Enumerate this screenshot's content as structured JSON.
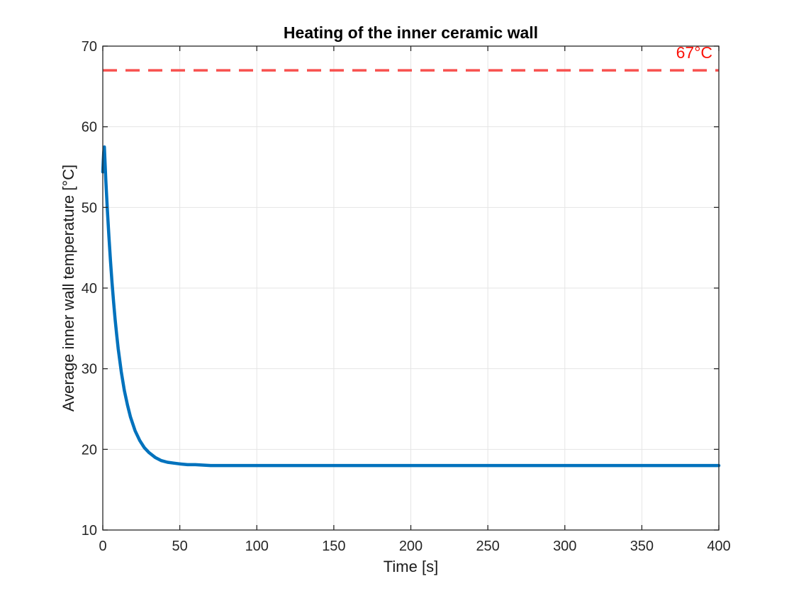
{
  "colors": {
    "background": "#ffffff",
    "axis": "#262626",
    "tick_text": "#262626",
    "grid": "#e5e5e5",
    "title_text": "#000000",
    "series_blue": "#0072BD",
    "series_red_dash": "#f8504f",
    "annotation_red": "#fb1209"
  },
  "chart_data": {
    "type": "line",
    "title": "Heating of the inner ceramic wall",
    "xlabel": "Time [s]",
    "ylabel": "Average inner wall temperature [°C]",
    "xlim": [
      0,
      400
    ],
    "ylim": [
      10,
      70
    ],
    "xticks": [
      0,
      50,
      100,
      150,
      200,
      250,
      300,
      350,
      400
    ],
    "yticks": [
      10,
      20,
      30,
      40,
      50,
      60,
      70
    ],
    "grid": true,
    "legend": null,
    "annotations": [
      {
        "text": "67°C",
        "x": 396,
        "y": 68.3,
        "color": "#fb1209",
        "align": "right"
      }
    ],
    "series": [
      {
        "name": "average-inner-wall-temperature",
        "color": "#0072BD",
        "style": "solid",
        "line_width": 4.5,
        "points": [
          [
            0,
            54.4
          ],
          [
            0.3,
            55.8
          ],
          [
            0.6,
            56.8
          ],
          [
            1,
            57.5
          ],
          [
            2,
            53.3
          ],
          [
            3,
            49.6
          ],
          [
            4,
            46.3
          ],
          [
            5,
            43.3
          ],
          [
            6,
            40.7
          ],
          [
            7,
            38.3
          ],
          [
            8,
            36.1
          ],
          [
            9,
            34.2
          ],
          [
            10,
            32.5
          ],
          [
            12,
            29.6
          ],
          [
            14,
            27.3
          ],
          [
            16,
            25.5
          ],
          [
            18,
            24.0
          ],
          [
            21,
            22.3
          ],
          [
            24,
            21.1
          ],
          [
            27,
            20.2
          ],
          [
            30,
            19.6
          ],
          [
            34,
            19.0
          ],
          [
            38,
            18.6
          ],
          [
            42,
            18.4
          ],
          [
            46,
            18.3
          ],
          [
            50,
            18.2
          ],
          [
            55,
            18.1
          ],
          [
            60,
            18.1
          ],
          [
            70,
            18.0
          ],
          [
            80,
            18.0
          ],
          [
            100,
            18.0
          ],
          [
            130,
            18.0
          ],
          [
            160,
            18.0
          ],
          [
            200,
            18.0
          ],
          [
            250,
            18.0
          ],
          [
            300,
            18.0
          ],
          [
            350,
            18.0
          ],
          [
            400,
            18.0
          ]
        ]
      },
      {
        "name": "threshold-67C",
        "color": "#f8504f",
        "style": "dashed",
        "dash": [
          20,
          12
        ],
        "line_width": 3.5,
        "points": [
          [
            0,
            67
          ],
          [
            400,
            67
          ]
        ]
      }
    ]
  }
}
